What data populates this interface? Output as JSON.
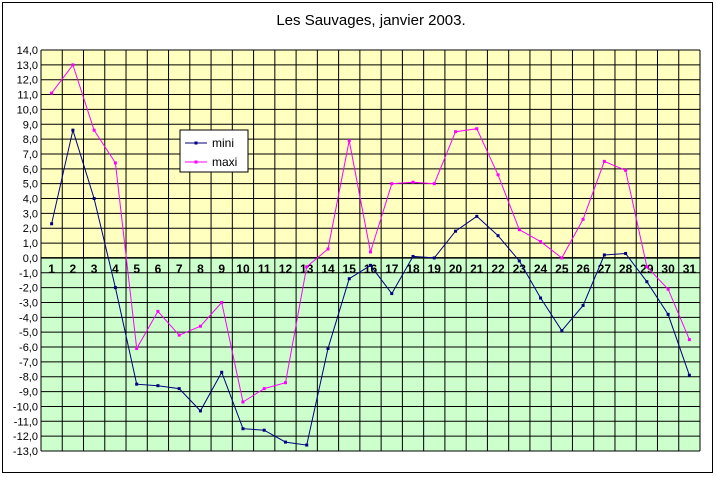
{
  "chart_data": {
    "type": "line",
    "title": "Les Sauvages, janvier 2003.",
    "xlabel": "",
    "ylabel": "",
    "x": [
      1,
      2,
      3,
      4,
      5,
      6,
      7,
      8,
      9,
      10,
      11,
      12,
      13,
      14,
      15,
      16,
      17,
      18,
      19,
      20,
      21,
      22,
      23,
      24,
      25,
      26,
      27,
      28,
      29,
      30,
      31
    ],
    "ylim": [
      -13,
      14
    ],
    "ytick_step": 1,
    "ytick_labels": [
      "14,0",
      "13,0",
      "12,0",
      "11,0",
      "10,0",
      "9,0",
      "8,0",
      "7,0",
      "6,0",
      "5,0",
      "4,0",
      "3,0",
      "2,0",
      "1,0",
      "0,0",
      "-1,0",
      "-2,0",
      "-3,0",
      "-4,0",
      "-5,0",
      "-6,0",
      "-7,0",
      "-8,0",
      "-9,0",
      "-10,0",
      "-11,0",
      "-12,0",
      "-13,0"
    ],
    "grid": true,
    "legend_position": "upper-left-inside",
    "background_colors": {
      "positive": "#ffffc0",
      "negative": "#ccffcc"
    },
    "series": [
      {
        "name": "mini",
        "color": "#000080",
        "values": [
          2.3,
          8.6,
          4.0,
          -2.0,
          -8.5,
          -8.6,
          -8.8,
          -10.3,
          -7.7,
          -11.5,
          -11.6,
          -12.4,
          -12.6,
          -6.1,
          -1.4,
          -0.5,
          -2.4,
          0.1,
          0.0,
          1.8,
          2.8,
          1.5,
          -0.2,
          -2.7,
          -4.9,
          -3.2,
          0.2,
          0.3,
          -1.6,
          -3.8,
          -7.9
        ]
      },
      {
        "name": "maxi",
        "color": "#ff00ff",
        "values": [
          11.1,
          13.0,
          8.6,
          6.4,
          -6.1,
          -3.6,
          -5.2,
          -4.6,
          -3.0,
          -9.7,
          -8.8,
          -8.4,
          -0.6,
          0.6,
          7.9,
          0.4,
          5.0,
          5.1,
          5.0,
          8.5,
          8.7,
          5.6,
          1.9,
          1.1,
          0.0,
          2.6,
          6.5,
          5.9,
          -0.6,
          -2.1,
          -5.5
        ]
      }
    ]
  }
}
